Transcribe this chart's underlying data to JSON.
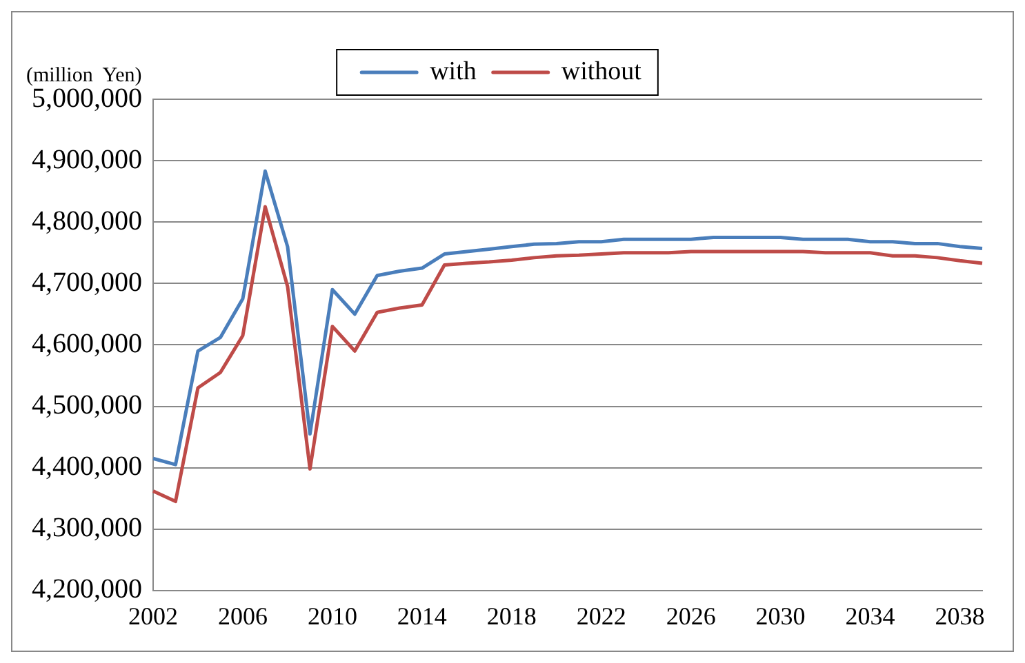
{
  "chart_data": {
    "type": "line",
    "ylabel": "(million  Yen)",
    "categories": [
      "2002",
      null,
      null,
      null,
      "2006",
      null,
      null,
      null,
      "2010",
      null,
      null,
      null,
      "2014",
      null,
      null,
      null,
      "2018",
      null,
      null,
      null,
      "2022",
      null,
      null,
      null,
      "2026",
      null,
      null,
      null,
      "2030",
      null,
      null,
      null,
      "2034",
      null,
      null,
      null,
      "2038",
      null
    ],
    "series": [
      {
        "name": "with",
        "color": "#4a7ebb",
        "values": [
          4415000,
          4405000,
          4590000,
          4612000,
          4675000,
          4883000,
          4760000,
          4455000,
          4690000,
          4650000,
          4713000,
          4720000,
          4725000,
          4748000,
          4752000,
          4756000,
          4760000,
          4764000,
          4765000,
          4768000,
          4768000,
          4772000,
          4772000,
          4772000,
          4772000,
          4775000,
          4775000,
          4775000,
          4775000,
          4772000,
          4772000,
          4772000,
          4768000,
          4768000,
          4765000,
          4765000,
          4760000,
          4757000
        ]
      },
      {
        "name": "without",
        "color": "#be4b48",
        "values": [
          4362000,
          4345000,
          4530000,
          4555000,
          4615000,
          4825000,
          4695000,
          4398000,
          4630000,
          4590000,
          4653000,
          4660000,
          4665000,
          4730000,
          4733000,
          4735000,
          4738000,
          4742000,
          4745000,
          4746000,
          4748000,
          4750000,
          4750000,
          4750000,
          4752000,
          4752000,
          4752000,
          4752000,
          4752000,
          4752000,
          4750000,
          4750000,
          4750000,
          4745000,
          4745000,
          4742000,
          4737000,
          4733000
        ]
      }
    ],
    "ylim": [
      4200000,
      5000000
    ],
    "yticks": [
      {
        "value": 4200000,
        "label": "4,200,000"
      },
      {
        "value": 4300000,
        "label": "4,300,000"
      },
      {
        "value": 4400000,
        "label": "4,400,000"
      },
      {
        "value": 4500000,
        "label": "4,500,000"
      },
      {
        "value": 4600000,
        "label": "4,600,000"
      },
      {
        "value": 4700000,
        "label": "4,700,000"
      },
      {
        "value": 4800000,
        "label": "4,800,000"
      },
      {
        "value": 4900000,
        "label": "4,900,000"
      },
      {
        "value": 5000000,
        "label": "5,000,000"
      }
    ],
    "grid": "y",
    "legend": "top",
    "marker": "none",
    "line_style": "solid"
  }
}
